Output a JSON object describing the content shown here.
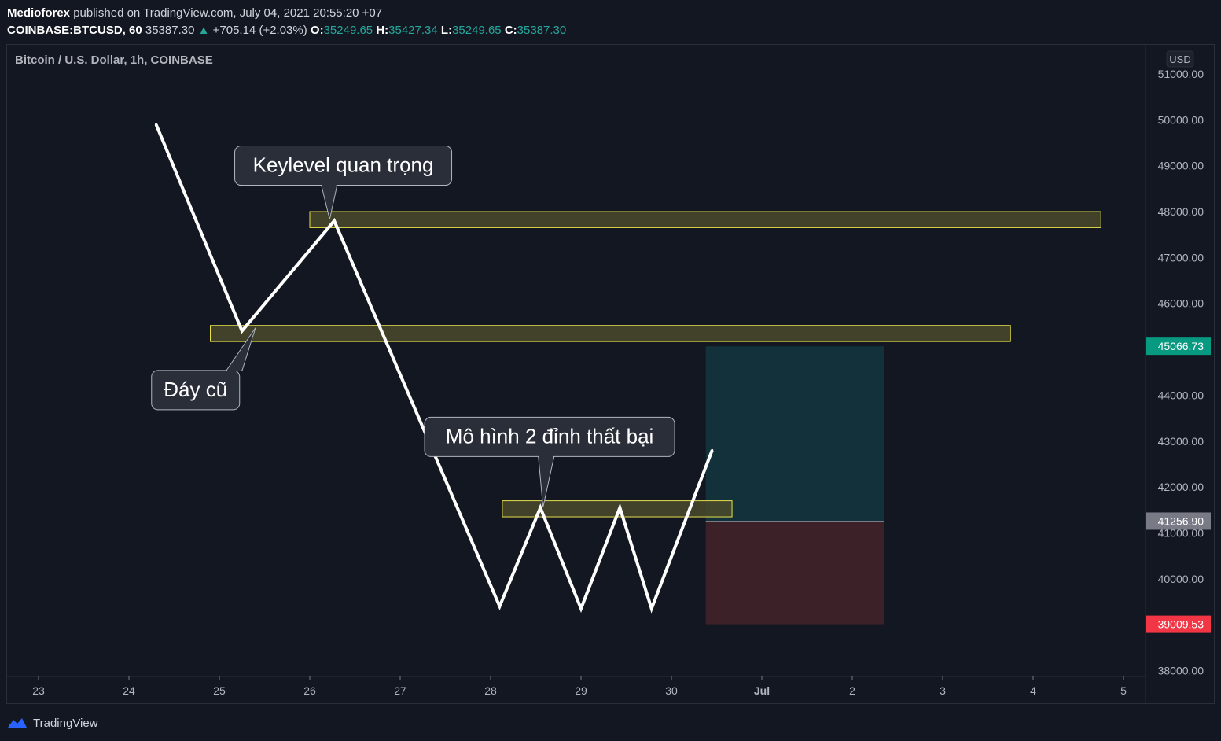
{
  "header": {
    "publisher": "Medioforex",
    "published_text": "published on TradingView.com, July 04, 2021 20:55:20 +07",
    "symbol": "COINBASE:BTCUSD, 60",
    "last_price": "35387.30",
    "change": "+705.14 (+2.03%)",
    "open_label": "O:",
    "open": "35249.65",
    "high_label": "H:",
    "high": "35427.34",
    "low_label": "L:",
    "low": "35249.65",
    "close_label": "C:",
    "close": "35387.30"
  },
  "chart_title": "Bitcoin / U.S. Dollar, 1h, COINBASE",
  "currency_label": "USD",
  "footer": {
    "brand": "TradingView",
    "logo_icon": "tradingview-logo-icon"
  },
  "colors": {
    "background": "#131722",
    "zone_border": "#e6e04a",
    "zone_fill": "#4a4a2a",
    "target_fill": "#12313a",
    "stop_fill": "#3d2129",
    "label_green": "#089981",
    "label_red": "#f23645",
    "label_gray": "#787b86"
  },
  "chart_data": {
    "type": "line",
    "x_ticks": [
      {
        "x": 0,
        "label": "23"
      },
      {
        "x": 1,
        "label": "24"
      },
      {
        "x": 2,
        "label": "25"
      },
      {
        "x": 3,
        "label": "26"
      },
      {
        "x": 4,
        "label": "27"
      },
      {
        "x": 5,
        "label": "28"
      },
      {
        "x": 6,
        "label": "29"
      },
      {
        "x": 7,
        "label": "30"
      },
      {
        "x": 8,
        "label": "Jul"
      },
      {
        "x": 9,
        "label": "2"
      },
      {
        "x": 10,
        "label": "3"
      },
      {
        "x": 11,
        "label": "4"
      },
      {
        "x": 12,
        "label": "5"
      }
    ],
    "y_ticks": [
      "51000.00",
      "50000.00",
      "49000.00",
      "48000.00",
      "47000.00",
      "46000.00",
      "44000.00",
      "43000.00",
      "42000.00",
      "41000.00",
      "40000.00",
      "38000.00"
    ],
    "ylim": [
      37850,
      51250
    ],
    "path": [
      {
        "x": 1.3,
        "y": 49900
      },
      {
        "x": 2.25,
        "y": 45400
      },
      {
        "x": 3.27,
        "y": 47800
      },
      {
        "x": 5.1,
        "y": 39400
      },
      {
        "x": 5.55,
        "y": 41550
      },
      {
        "x": 6.0,
        "y": 39350
      },
      {
        "x": 6.43,
        "y": 41550
      },
      {
        "x": 6.78,
        "y": 39350
      },
      {
        "x": 7.45,
        "y": 42800
      }
    ],
    "zones": [
      {
        "x1": 3.0,
        "x2": 11.75,
        "y1": 47650,
        "y2": 48000
      },
      {
        "x1": 1.9,
        "x2": 10.75,
        "y1": 45170,
        "y2": 45520
      },
      {
        "x1": 5.13,
        "x2": 7.67,
        "y1": 41350,
        "y2": 41700
      }
    ],
    "position": {
      "x1": 7.38,
      "x2": 9.35,
      "target": 45066.73,
      "entry": 41256.9,
      "stop": 39009.53
    },
    "price_labels": [
      {
        "value": 45066.73,
        "text": "45066.73",
        "color": "#089981"
      },
      {
        "value": 41256.9,
        "text": "41256.90",
        "color": "#787b86"
      },
      {
        "value": 39009.53,
        "text": "39009.53",
        "color": "#f23645"
      }
    ],
    "callouts": [
      {
        "text": "Keylevel quan trọng",
        "box_x": 2.17,
        "box_y": 49430,
        "w": 276,
        "h": 50,
        "tip_x": 3.22,
        "tip_y": 47830,
        "stem_x": 3.25
      },
      {
        "text": "Đáy cũ",
        "box_x": 1.25,
        "box_y": 44540,
        "w": 112,
        "h": 50,
        "tip_x": 2.4,
        "tip_y": 45470,
        "stem_x": 2.2
      },
      {
        "text": "Mô hình 2 đỉnh thất bại",
        "box_x": 4.27,
        "box_y": 43520,
        "w": 318,
        "h": 50,
        "tip_x": 5.58,
        "tip_y": 41560,
        "stem_x": 5.65
      }
    ]
  }
}
